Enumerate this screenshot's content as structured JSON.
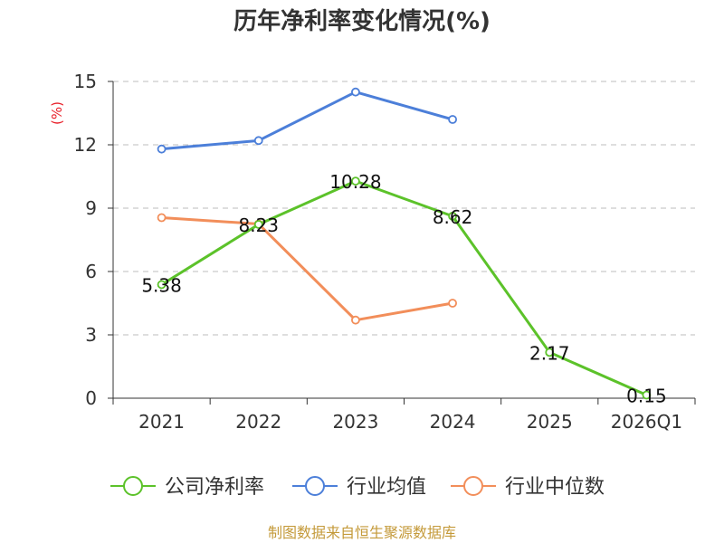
{
  "chart_data": {
    "type": "line",
    "title": "历年净利率变化情况(%)",
    "ylabel": "(%)",
    "categories": [
      "2021",
      "2022",
      "2023",
      "2024",
      "2025",
      "2026Q1"
    ],
    "ylim": [
      0,
      15
    ],
    "yticks": [
      0,
      3,
      6,
      9,
      12,
      15
    ],
    "grid": true,
    "legend_position": "bottom",
    "series": [
      {
        "name": "公司净利率",
        "color": "#5cc22a",
        "values": [
          5.38,
          8.23,
          10.28,
          8.62,
          2.17,
          0.15
        ],
        "labels": [
          "5.38",
          "8.23",
          "10.28",
          "8.62",
          "2.17",
          "0.15"
        ]
      },
      {
        "name": "行业均值",
        "color": "#4c7fd9",
        "values": [
          11.8,
          12.2,
          14.5,
          13.2,
          null,
          null
        ]
      },
      {
        "name": "行业中位数",
        "color": "#f28e5a",
        "values": [
          8.55,
          8.25,
          3.7,
          4.5,
          null,
          null
        ]
      }
    ]
  },
  "source": "制图数据来自恒生聚源数据库"
}
